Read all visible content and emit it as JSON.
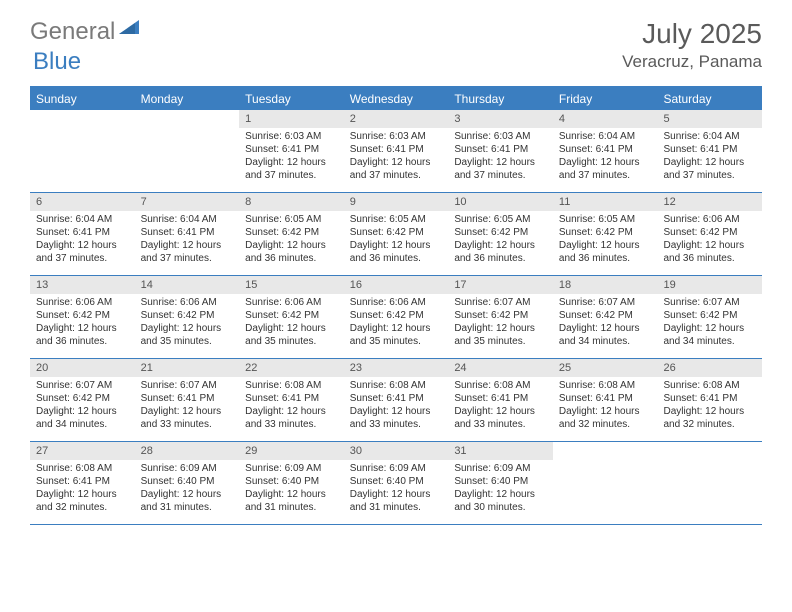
{
  "logo": {
    "general": "General",
    "blue": "Blue"
  },
  "title": "July 2025",
  "location": "Veracruz, Panama",
  "colors": {
    "accent": "#3b7ec0",
    "header_text": "#ffffff",
    "daybar_bg": "#e8e8e8",
    "text": "#333333",
    "muted": "#5a5a5a",
    "logo_gray": "#7a7a7a"
  },
  "day_names": [
    "Sunday",
    "Monday",
    "Tuesday",
    "Wednesday",
    "Thursday",
    "Friday",
    "Saturday"
  ],
  "weeks": [
    [
      {
        "num": "",
        "sunrise": "",
        "sunset": "",
        "daylight": ""
      },
      {
        "num": "",
        "sunrise": "",
        "sunset": "",
        "daylight": ""
      },
      {
        "num": "1",
        "sunrise": "Sunrise: 6:03 AM",
        "sunset": "Sunset: 6:41 PM",
        "daylight": "Daylight: 12 hours and 37 minutes."
      },
      {
        "num": "2",
        "sunrise": "Sunrise: 6:03 AM",
        "sunset": "Sunset: 6:41 PM",
        "daylight": "Daylight: 12 hours and 37 minutes."
      },
      {
        "num": "3",
        "sunrise": "Sunrise: 6:03 AM",
        "sunset": "Sunset: 6:41 PM",
        "daylight": "Daylight: 12 hours and 37 minutes."
      },
      {
        "num": "4",
        "sunrise": "Sunrise: 6:04 AM",
        "sunset": "Sunset: 6:41 PM",
        "daylight": "Daylight: 12 hours and 37 minutes."
      },
      {
        "num": "5",
        "sunrise": "Sunrise: 6:04 AM",
        "sunset": "Sunset: 6:41 PM",
        "daylight": "Daylight: 12 hours and 37 minutes."
      }
    ],
    [
      {
        "num": "6",
        "sunrise": "Sunrise: 6:04 AM",
        "sunset": "Sunset: 6:41 PM",
        "daylight": "Daylight: 12 hours and 37 minutes."
      },
      {
        "num": "7",
        "sunrise": "Sunrise: 6:04 AM",
        "sunset": "Sunset: 6:41 PM",
        "daylight": "Daylight: 12 hours and 37 minutes."
      },
      {
        "num": "8",
        "sunrise": "Sunrise: 6:05 AM",
        "sunset": "Sunset: 6:42 PM",
        "daylight": "Daylight: 12 hours and 36 minutes."
      },
      {
        "num": "9",
        "sunrise": "Sunrise: 6:05 AM",
        "sunset": "Sunset: 6:42 PM",
        "daylight": "Daylight: 12 hours and 36 minutes."
      },
      {
        "num": "10",
        "sunrise": "Sunrise: 6:05 AM",
        "sunset": "Sunset: 6:42 PM",
        "daylight": "Daylight: 12 hours and 36 minutes."
      },
      {
        "num": "11",
        "sunrise": "Sunrise: 6:05 AM",
        "sunset": "Sunset: 6:42 PM",
        "daylight": "Daylight: 12 hours and 36 minutes."
      },
      {
        "num": "12",
        "sunrise": "Sunrise: 6:06 AM",
        "sunset": "Sunset: 6:42 PM",
        "daylight": "Daylight: 12 hours and 36 minutes."
      }
    ],
    [
      {
        "num": "13",
        "sunrise": "Sunrise: 6:06 AM",
        "sunset": "Sunset: 6:42 PM",
        "daylight": "Daylight: 12 hours and 36 minutes."
      },
      {
        "num": "14",
        "sunrise": "Sunrise: 6:06 AM",
        "sunset": "Sunset: 6:42 PM",
        "daylight": "Daylight: 12 hours and 35 minutes."
      },
      {
        "num": "15",
        "sunrise": "Sunrise: 6:06 AM",
        "sunset": "Sunset: 6:42 PM",
        "daylight": "Daylight: 12 hours and 35 minutes."
      },
      {
        "num": "16",
        "sunrise": "Sunrise: 6:06 AM",
        "sunset": "Sunset: 6:42 PM",
        "daylight": "Daylight: 12 hours and 35 minutes."
      },
      {
        "num": "17",
        "sunrise": "Sunrise: 6:07 AM",
        "sunset": "Sunset: 6:42 PM",
        "daylight": "Daylight: 12 hours and 35 minutes."
      },
      {
        "num": "18",
        "sunrise": "Sunrise: 6:07 AM",
        "sunset": "Sunset: 6:42 PM",
        "daylight": "Daylight: 12 hours and 34 minutes."
      },
      {
        "num": "19",
        "sunrise": "Sunrise: 6:07 AM",
        "sunset": "Sunset: 6:42 PM",
        "daylight": "Daylight: 12 hours and 34 minutes."
      }
    ],
    [
      {
        "num": "20",
        "sunrise": "Sunrise: 6:07 AM",
        "sunset": "Sunset: 6:42 PM",
        "daylight": "Daylight: 12 hours and 34 minutes."
      },
      {
        "num": "21",
        "sunrise": "Sunrise: 6:07 AM",
        "sunset": "Sunset: 6:41 PM",
        "daylight": "Daylight: 12 hours and 33 minutes."
      },
      {
        "num": "22",
        "sunrise": "Sunrise: 6:08 AM",
        "sunset": "Sunset: 6:41 PM",
        "daylight": "Daylight: 12 hours and 33 minutes."
      },
      {
        "num": "23",
        "sunrise": "Sunrise: 6:08 AM",
        "sunset": "Sunset: 6:41 PM",
        "daylight": "Daylight: 12 hours and 33 minutes."
      },
      {
        "num": "24",
        "sunrise": "Sunrise: 6:08 AM",
        "sunset": "Sunset: 6:41 PM",
        "daylight": "Daylight: 12 hours and 33 minutes."
      },
      {
        "num": "25",
        "sunrise": "Sunrise: 6:08 AM",
        "sunset": "Sunset: 6:41 PM",
        "daylight": "Daylight: 12 hours and 32 minutes."
      },
      {
        "num": "26",
        "sunrise": "Sunrise: 6:08 AM",
        "sunset": "Sunset: 6:41 PM",
        "daylight": "Daylight: 12 hours and 32 minutes."
      }
    ],
    [
      {
        "num": "27",
        "sunrise": "Sunrise: 6:08 AM",
        "sunset": "Sunset: 6:41 PM",
        "daylight": "Daylight: 12 hours and 32 minutes."
      },
      {
        "num": "28",
        "sunrise": "Sunrise: 6:09 AM",
        "sunset": "Sunset: 6:40 PM",
        "daylight": "Daylight: 12 hours and 31 minutes."
      },
      {
        "num": "29",
        "sunrise": "Sunrise: 6:09 AM",
        "sunset": "Sunset: 6:40 PM",
        "daylight": "Daylight: 12 hours and 31 minutes."
      },
      {
        "num": "30",
        "sunrise": "Sunrise: 6:09 AM",
        "sunset": "Sunset: 6:40 PM",
        "daylight": "Daylight: 12 hours and 31 minutes."
      },
      {
        "num": "31",
        "sunrise": "Sunrise: 6:09 AM",
        "sunset": "Sunset: 6:40 PM",
        "daylight": "Daylight: 12 hours and 30 minutes."
      },
      {
        "num": "",
        "sunrise": "",
        "sunset": "",
        "daylight": ""
      },
      {
        "num": "",
        "sunrise": "",
        "sunset": "",
        "daylight": ""
      }
    ]
  ]
}
